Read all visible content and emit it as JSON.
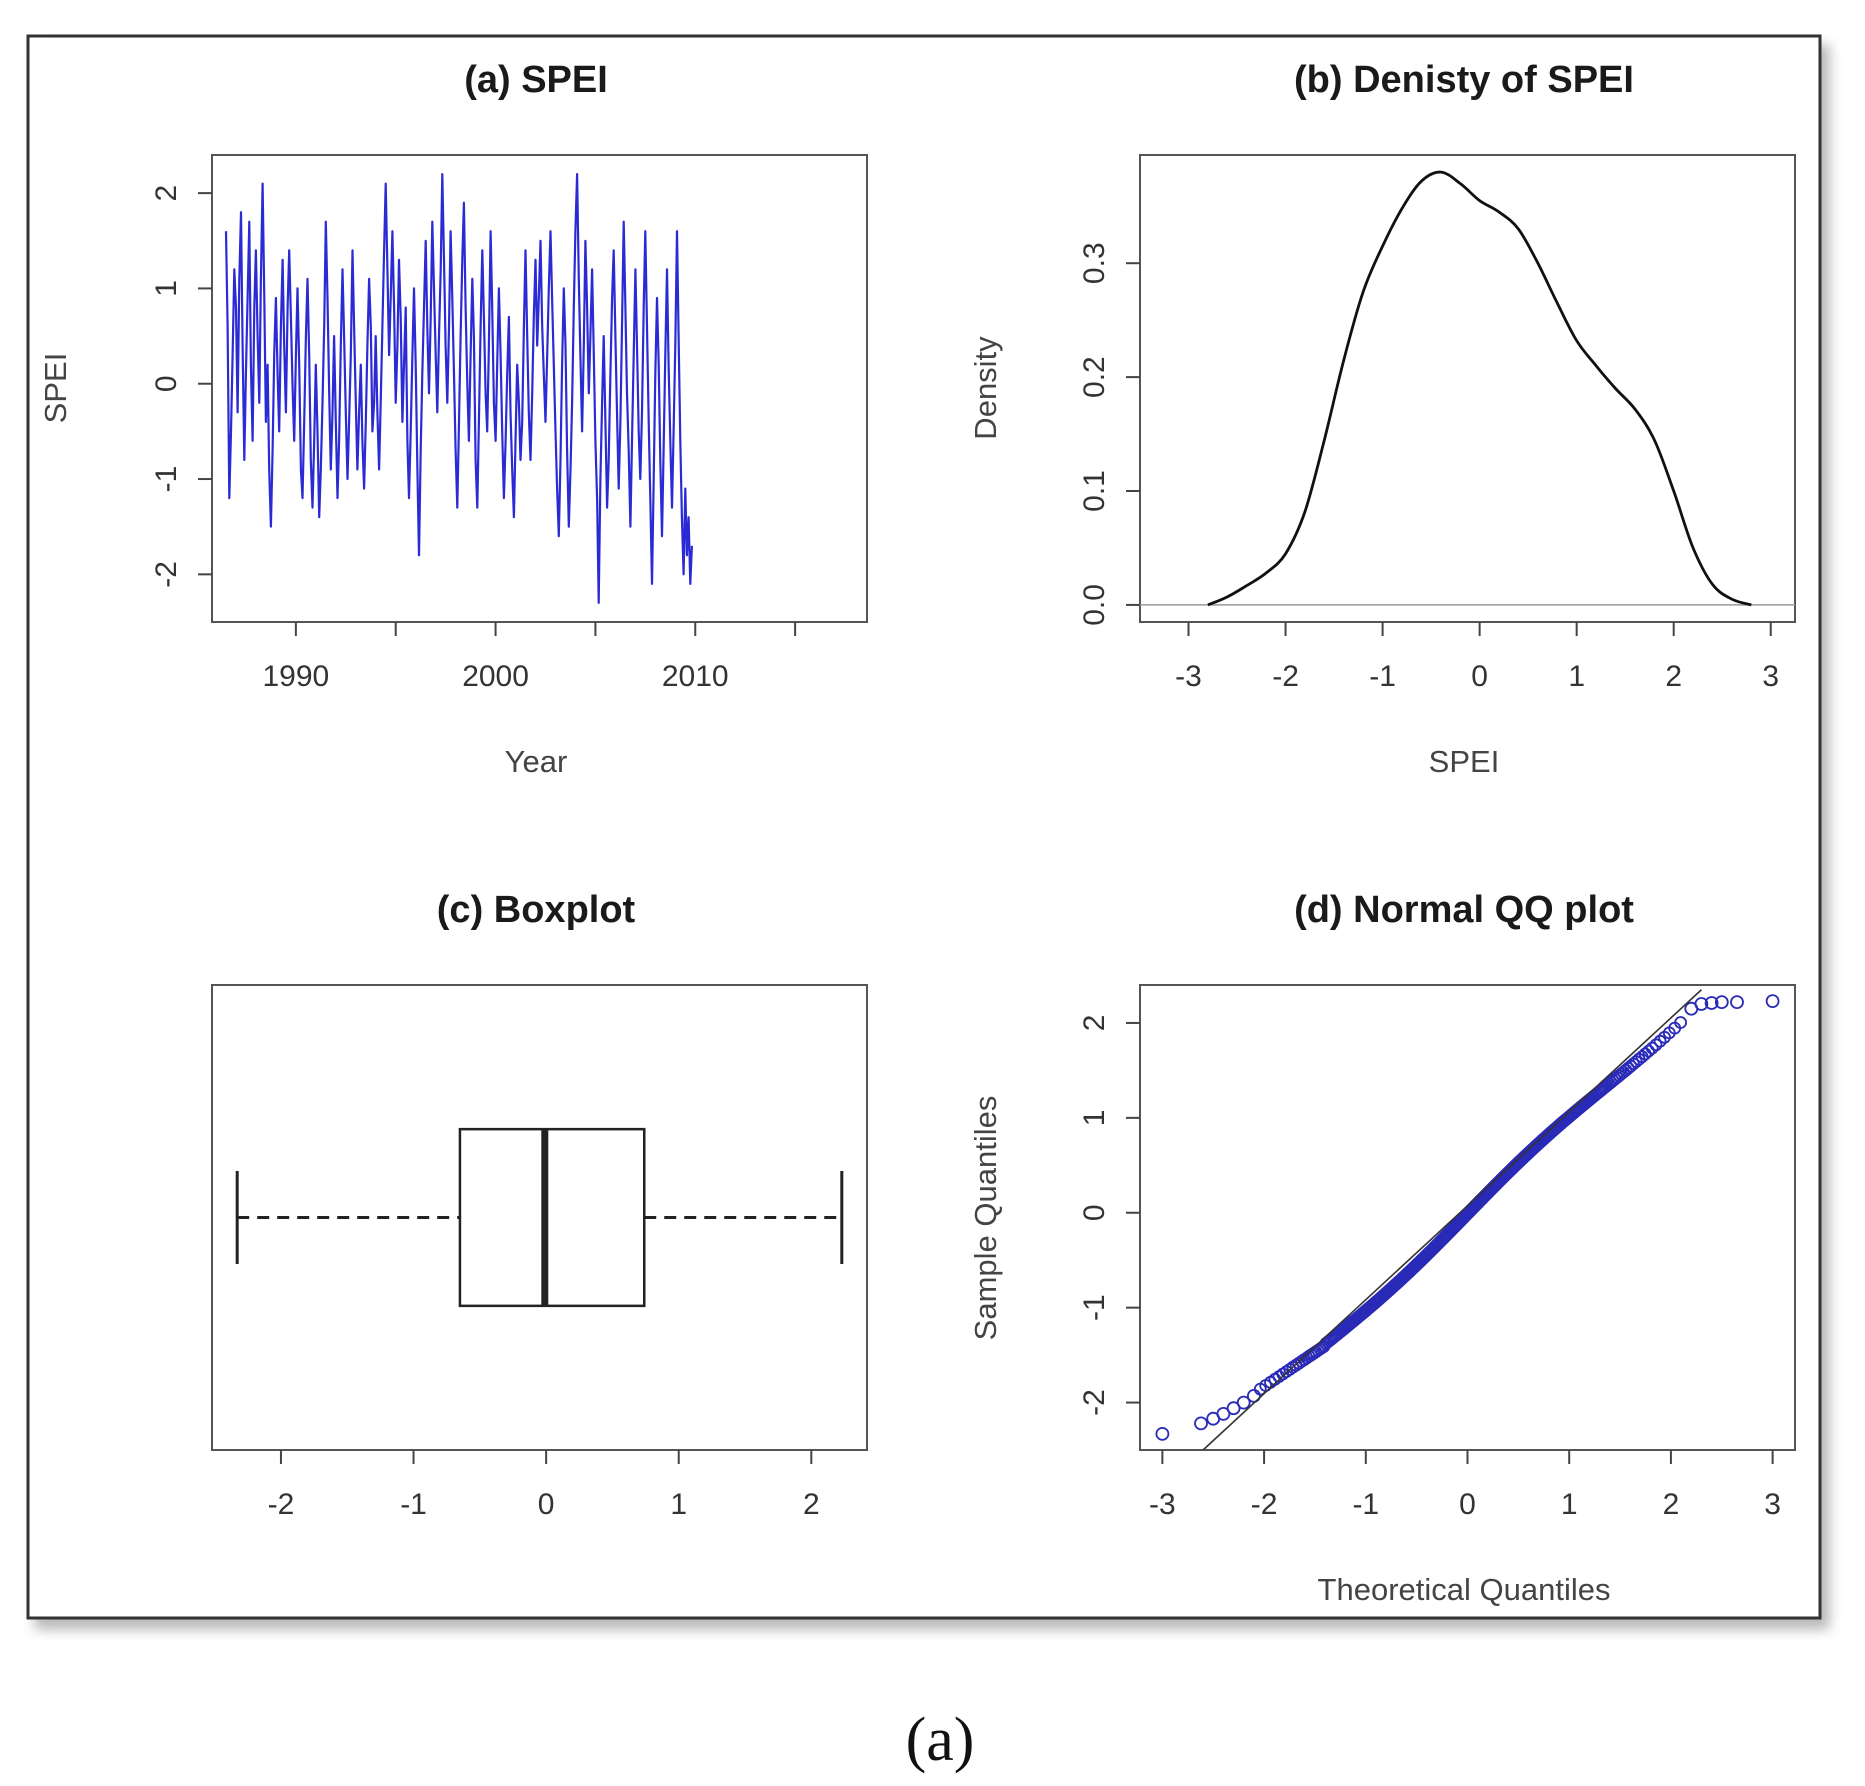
{
  "caption": "(a)",
  "colors": {
    "series": "#2b2bd6",
    "box": "#222222",
    "density": "#111111",
    "qq_points": "#2a2ab8",
    "qq_line": "#333333"
  },
  "chart_data": [
    {
      "id": "a",
      "type": "line",
      "title": "(a) SPEI",
      "xlabel": "Year",
      "ylabel": "SPEI",
      "xlim": [
        1985.8,
        2018.6
      ],
      "ylim": [
        -2.5,
        2.4
      ],
      "xticks": [
        1990,
        1995,
        2000,
        2005,
        2010,
        2015
      ],
      "xtick_labels": [
        "1990",
        "",
        "2000",
        "",
        "2010",
        ""
      ],
      "yticks": [
        -2,
        -1,
        0,
        1,
        2
      ],
      "ytick_labels": [
        "-2",
        "-1",
        "0",
        "1",
        "2"
      ],
      "series": [
        {
          "name": "SPEI",
          "start": 1986.5,
          "step": 0.0833333,
          "values": [
            1.6,
            0.6,
            -1.2,
            -0.5,
            0.3,
            1.2,
            0.8,
            -0.3,
            1.1,
            1.8,
            0.4,
            -0.8,
            0.1,
            0.9,
            1.7,
            0.2,
            -0.6,
            0.8,
            1.4,
            0.5,
            -0.2,
            1.1,
            2.1,
            0.9,
            -0.4,
            0.2,
            -0.9,
            -1.5,
            -0.7,
            0.3,
            0.9,
            0.1,
            -0.5,
            0.6,
            1.3,
            0.4,
            -0.3,
            0.8,
            1.4,
            0.7,
            0.0,
            -0.6,
            0.3,
            1.0,
            0.2,
            -0.9,
            -1.2,
            -0.4,
            0.5,
            1.1,
            0.3,
            -0.8,
            -1.3,
            -0.6,
            0.2,
            -0.5,
            -1.4,
            -0.9,
            -0.2,
            0.6,
            1.7,
            0.9,
            -0.1,
            -0.9,
            -0.3,
            0.5,
            -0.4,
            -1.2,
            -0.6,
            0.4,
            1.2,
            0.5,
            -0.3,
            -1.0,
            -0.4,
            0.3,
            1.4,
            0.6,
            -0.2,
            -0.9,
            -0.3,
            0.2,
            -0.6,
            -1.1,
            -0.4,
            0.4,
            1.1,
            0.6,
            -0.5,
            -0.2,
            0.5,
            -0.3,
            -0.9,
            -0.2,
            0.6,
            1.4,
            2.1,
            1.2,
            0.3,
            0.9,
            1.6,
            0.8,
            -0.2,
            0.4,
            1.3,
            0.7,
            -0.4,
            0.2,
            0.8,
            -0.6,
            -1.2,
            -0.5,
            0.3,
            1.0,
            0.2,
            -0.9,
            -1.8,
            -0.7,
            0.1,
            0.8,
            1.5,
            0.6,
            -0.1,
            0.7,
            1.7,
            1.0,
            0.3,
            -0.3,
            0.5,
            1.2,
            2.2,
            1.3,
            0.4,
            -0.2,
            0.6,
            1.6,
            0.9,
            0.1,
            -0.7,
            -1.3,
            -0.4,
            0.5,
            1.3,
            1.9,
            0.8,
            0.0,
            -0.6,
            0.3,
            1.1,
            0.5,
            -0.8,
            -1.3,
            -0.4,
            0.6,
            1.4,
            0.7,
            -0.1,
            -0.5,
            0.4,
            1.6,
            0.8,
            -0.2,
            -0.6,
            0.2,
            1.0,
            0.3,
            -0.5,
            -1.2,
            -0.6,
            0.1,
            0.7,
            -0.3,
            -0.9,
            -1.4,
            -0.6,
            0.2,
            -0.2,
            -0.8,
            -0.4,
            0.6,
            1.4,
            0.5,
            -0.3,
            -0.8,
            -0.1,
            0.7,
            1.3,
            0.4,
            0.9,
            1.5,
            0.6,
            0.1,
            -0.4,
            0.3,
            1.0,
            1.6,
            0.9,
            0.2,
            -0.5,
            -1.1,
            -1.6,
            -0.8,
            0.2,
            1.0,
            0.4,
            -0.7,
            -1.5,
            -0.9,
            -0.2,
            0.8,
            1.6,
            2.2,
            1.1,
            0.3,
            -0.5,
            0.4,
            1.5,
            0.8,
            -0.1,
            0.5,
            1.2,
            0.3,
            -0.6,
            -1.2,
            -2.3,
            -1.0,
            -0.2,
            0.5,
            -0.4,
            -1.3,
            -0.8,
            0.1,
            0.9,
            1.4,
            0.5,
            -0.3,
            -1.1,
            -0.4,
            0.6,
            1.7,
            0.8,
            -0.1,
            -0.7,
            -1.5,
            -0.6,
            0.3,
            1.2,
            0.4,
            -0.5,
            -1.0,
            -0.3,
            0.8,
            1.6,
            0.6,
            -0.4,
            -1.2,
            -2.1,
            -1.0,
            0.1,
            0.9,
            0.2,
            -0.8,
            -1.6,
            -0.7,
            0.3,
            1.2,
            0.2,
            -0.6,
            -1.3,
            -0.5,
            0.4,
            1.6,
            0.5,
            -0.6,
            -1.4,
            -2.0,
            -1.1,
            -1.8,
            -1.4,
            -2.1,
            -1.7
          ]
        }
      ]
    },
    {
      "id": "b",
      "type": "line",
      "title": "(b) Denisty of SPEI",
      "xlabel": "SPEI",
      "ylabel": "Density",
      "xlim": [
        -3.5,
        3.25
      ],
      "ylim": [
        -0.015,
        0.395
      ],
      "xticks": [
        -3,
        -2,
        -1,
        0,
        1,
        2,
        3
      ],
      "xtick_labels": [
        "-3",
        "-2",
        "-1",
        "0",
        "1",
        "2",
        "3"
      ],
      "yticks": [
        0.0,
        0.1,
        0.2,
        0.3
      ],
      "ytick_labels": [
        "0.0",
        "0.1",
        "0.2",
        "0.3"
      ],
      "baseline": 0.0,
      "series": [
        {
          "name": "density",
          "x": [
            -2.8,
            -2.6,
            -2.4,
            -2.2,
            -2.0,
            -1.8,
            -1.6,
            -1.4,
            -1.2,
            -1.0,
            -0.8,
            -0.6,
            -0.4,
            -0.2,
            0.0,
            0.2,
            0.4,
            0.6,
            0.8,
            1.0,
            1.2,
            1.4,
            1.6,
            1.8,
            2.0,
            2.2,
            2.4,
            2.6,
            2.8
          ],
          "y": [
            0.0,
            0.007,
            0.017,
            0.028,
            0.045,
            0.082,
            0.145,
            0.215,
            0.275,
            0.315,
            0.348,
            0.372,
            0.38,
            0.37,
            0.355,
            0.345,
            0.33,
            0.3,
            0.265,
            0.232,
            0.21,
            0.19,
            0.172,
            0.145,
            0.1,
            0.05,
            0.018,
            0.005,
            0.0
          ]
        }
      ]
    },
    {
      "id": "c",
      "type": "box",
      "title": "(c) Boxplot",
      "xlim": [
        -2.52,
        2.42
      ],
      "xticks": [
        -2,
        -1,
        0,
        1,
        2
      ],
      "xtick_labels": [
        "-2",
        "-1",
        "0",
        "1",
        "2"
      ],
      "stats": {
        "min": -2.33,
        "q1": -0.65,
        "median": -0.01,
        "q3": 0.74,
        "max": 2.23
      }
    },
    {
      "id": "d",
      "type": "scatter",
      "title": "(d) Normal QQ plot",
      "xlabel": "Theoretical Quantiles",
      "ylabel": "Sample Quantiles",
      "xlim": [
        -3.22,
        3.22
      ],
      "ylim": [
        -2.5,
        2.4
      ],
      "xticks": [
        -3,
        -2,
        -1,
        0,
        1,
        2,
        3
      ],
      "xtick_labels": [
        "-3",
        "-2",
        "-1",
        "0",
        "1",
        "2",
        "3"
      ],
      "yticks": [
        -2,
        -1,
        0,
        1,
        2
      ],
      "ytick_labels": [
        "-2",
        "-1",
        "0",
        "1",
        "2"
      ],
      "n_points": 360,
      "reference_line": {
        "x": [
          -2.6,
          2.3
        ],
        "y": [
          -2.6,
          2.35
        ]
      },
      "tail_points": [
        {
          "x": -3.0,
          "y": -2.33
        },
        {
          "x": -2.62,
          "y": -2.22
        },
        {
          "x": -2.5,
          "y": -2.17
        },
        {
          "x": -2.4,
          "y": -2.12
        },
        {
          "x": -2.3,
          "y": -2.06
        },
        {
          "x": -2.2,
          "y": -2.0
        },
        {
          "x": -2.1,
          "y": -1.93
        },
        {
          "x": 2.2,
          "y": 2.15
        },
        {
          "x": 2.3,
          "y": 2.2
        },
        {
          "x": 2.4,
          "y": 2.21
        },
        {
          "x": 2.5,
          "y": 2.22
        },
        {
          "x": 2.65,
          "y": 2.22
        },
        {
          "x": 3.0,
          "y": 2.23
        }
      ]
    }
  ]
}
